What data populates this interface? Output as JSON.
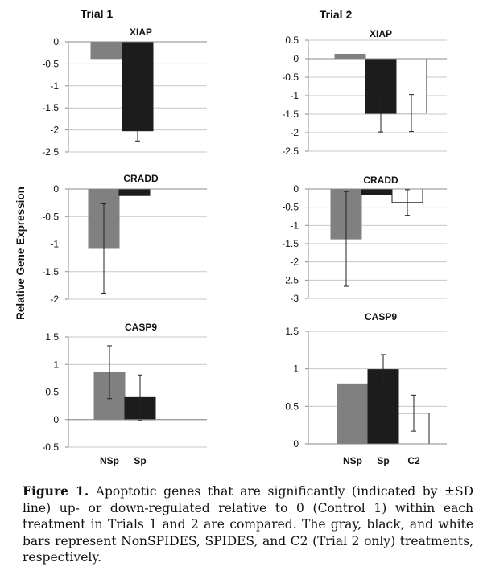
{
  "figure": {
    "trial1_title": "Trial 1",
    "trial2_title": "Trial 2",
    "ylabel": "Relative Gene Expression",
    "treatments": [
      {
        "name": "NonSPIDES",
        "color": "#808080",
        "stroke": "#808080"
      },
      {
        "name": "SPIDES",
        "color": "#1c1c1c",
        "stroke": "#1c1c1c"
      },
      {
        "name": "C2",
        "color": "#ffffff",
        "stroke": "#222222"
      }
    ]
  },
  "chart_data": [
    {
      "type": "bar",
      "trial": "Trial 1",
      "gene": "XIAP",
      "title": "XIAP",
      "ylim": [
        -2.5,
        0
      ],
      "yticks": [
        0,
        -0.5,
        -1,
        -1.5,
        -2,
        -2.5
      ],
      "tick_labels": [
        "0",
        "-0.5",
        "-1",
        "-1.5",
        "-2",
        "-2.5"
      ],
      "categories": [],
      "grid": true,
      "bars": [
        {
          "treatment": "NonSPIDES",
          "value": -0.38,
          "sd": null
        },
        {
          "treatment": "SPIDES",
          "value": -2.02,
          "sd": 0.23
        }
      ]
    },
    {
      "type": "bar",
      "trial": "Trial 2",
      "gene": "XIAP",
      "title": "XIAP",
      "ylim": [
        -2.5,
        0.5
      ],
      "yticks": [
        0.5,
        0,
        -0.5,
        -1,
        -1.5,
        -2,
        -2.5
      ],
      "tick_labels": [
        "0.5",
        "0",
        "-0.5",
        "-1",
        "-1.5",
        "-2",
        "-2.5"
      ],
      "categories": [],
      "grid": true,
      "bars": [
        {
          "treatment": "NonSPIDES",
          "value": 0.12,
          "sd": null
        },
        {
          "treatment": "SPIDES",
          "value": -1.48,
          "sd": 0.5
        },
        {
          "treatment": "C2",
          "value": -1.47,
          "sd": 0.5
        }
      ]
    },
    {
      "type": "bar",
      "trial": "Trial 1",
      "gene": "CRADD",
      "title": "CRADD",
      "ylim": [
        -2,
        0
      ],
      "yticks": [
        0,
        -0.5,
        -1,
        -1.5,
        -2
      ],
      "tick_labels": [
        "0",
        "-0.5",
        "-1",
        "-1.5",
        "-2"
      ],
      "categories": [],
      "grid": true,
      "bars": [
        {
          "treatment": "NonSPIDES",
          "value": -1.08,
          "sd": 0.81
        },
        {
          "treatment": "SPIDES",
          "value": -0.12,
          "sd": null
        }
      ]
    },
    {
      "type": "bar",
      "trial": "Trial 2",
      "gene": "CRADD",
      "title": "CRADD",
      "ylim": [
        -3,
        0
      ],
      "yticks": [
        0,
        -0.5,
        -1,
        -1.5,
        -2,
        -2.5,
        -3
      ],
      "tick_labels": [
        "0",
        "-0.5",
        "-1",
        "-1.5",
        "-2",
        "-2.5",
        "-3"
      ],
      "categories": [],
      "grid": true,
      "bars": [
        {
          "treatment": "NonSPIDES",
          "value": -1.37,
          "sd": 1.3
        },
        {
          "treatment": "SPIDES",
          "value": -0.15,
          "sd": null
        },
        {
          "treatment": "C2",
          "value": -0.37,
          "sd": 0.35
        }
      ]
    },
    {
      "type": "bar",
      "trial": "Trial 1",
      "gene": "CASP9",
      "title": "CASP9",
      "ylim": [
        -0.5,
        1.5
      ],
      "yticks": [
        1.5,
        1,
        0.5,
        0,
        -0.5
      ],
      "tick_labels": [
        "1.5",
        "1",
        "0.5",
        "0",
        "-0.5"
      ],
      "categories": [
        "NSp",
        "Sp"
      ],
      "grid": true,
      "bars": [
        {
          "treatment": "NonSPIDES",
          "value": 0.86,
          "sd": 0.48
        },
        {
          "treatment": "SPIDES",
          "value": 0.4,
          "sd": 0.41
        }
      ]
    },
    {
      "type": "bar",
      "trial": "Trial 2",
      "gene": "CASP9",
      "title": "CASP9",
      "ylim": [
        0,
        1.5
      ],
      "yticks": [
        1.5,
        1,
        0.5,
        0
      ],
      "tick_labels": [
        "1.5",
        "1",
        "0.5",
        "0"
      ],
      "categories": [
        "NSp",
        "Sp",
        "C2"
      ],
      "grid": true,
      "bars": [
        {
          "treatment": "NonSPIDES",
          "value": 0.8,
          "sd": null
        },
        {
          "treatment": "SPIDES",
          "value": 0.99,
          "sd": 0.2
        },
        {
          "treatment": "C2",
          "value": 0.41,
          "sd": 0.24
        }
      ]
    }
  ],
  "caption": {
    "label": "Figure 1.",
    "text": " Apoptotic genes that are significantly (indicated by ±SD line) up- or down-regulated relative to 0 (Control 1) within each treatment in Trials 1 and 2 are compared. The gray, black, and white bars represent NonSPIDES, SPIDES, and C2 (Trial 2 only) treatments, respectively."
  }
}
